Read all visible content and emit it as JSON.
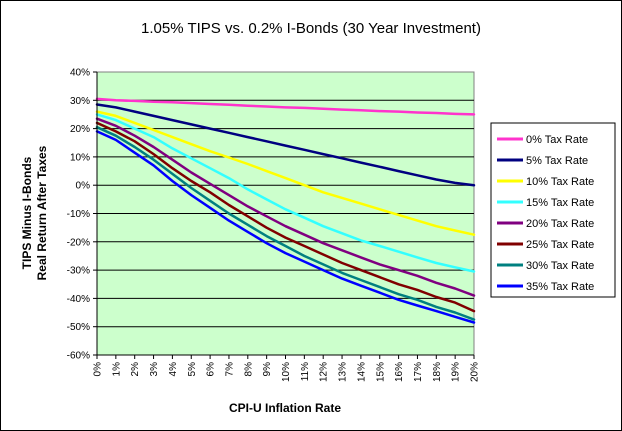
{
  "chart_data": {
    "type": "line",
    "title": "1.05% TIPS vs. 0.2% I-Bonds (30 Year Investment)",
    "xlabel": "CPI-U Inflation Rate",
    "ylabel_line1": "TIPS Minus I-Bonds",
    "ylabel_line2": "Real Return After Taxes",
    "x": [
      0,
      1,
      2,
      3,
      4,
      5,
      6,
      7,
      8,
      9,
      10,
      11,
      12,
      13,
      14,
      15,
      16,
      17,
      18,
      19,
      20
    ],
    "x_tick_labels": [
      "0%",
      "1%",
      "2%",
      "3%",
      "4%",
      "5%",
      "6%",
      "7%",
      "8%",
      "9%",
      "10%",
      "11%",
      "12%",
      "13%",
      "14%",
      "15%",
      "16%",
      "17%",
      "18%",
      "19%",
      "20%"
    ],
    "ylim": [
      -60,
      40
    ],
    "y_ticks": [
      -60,
      -50,
      -40,
      -30,
      -20,
      -10,
      0,
      10,
      20,
      30,
      40
    ],
    "y_tick_labels": [
      "-60%",
      "-50%",
      "-40%",
      "-30%",
      "-20%",
      "-10%",
      "0%",
      "10%",
      "20%",
      "30%",
      "40%"
    ],
    "grid": "horizontal",
    "plot_background": "#ccffcc",
    "legend_position": "right",
    "series": [
      {
        "name": "0% Tax Rate",
        "color": "#ff33cc",
        "values": [
          30.5,
          30,
          29.8,
          29.5,
          29.3,
          29,
          28.7,
          28.4,
          28.1,
          27.8,
          27.5,
          27.3,
          27,
          26.7,
          26.5,
          26.2,
          26,
          25.7,
          25.5,
          25.2,
          25
        ]
      },
      {
        "name": "5% Tax Rate",
        "color": "#000080",
        "values": [
          28.5,
          27.5,
          26,
          24.5,
          23,
          21.5,
          20,
          18.5,
          17,
          15.5,
          14,
          12.5,
          11,
          9.5,
          8,
          6.5,
          5,
          3.5,
          2,
          0.8,
          0
        ]
      },
      {
        "name": "10% Tax Rate",
        "color": "#ffff00",
        "values": [
          26,
          24.5,
          22,
          19.5,
          17,
          14.5,
          12,
          9.8,
          7.5,
          5,
          2.5,
          0,
          -2.5,
          -4.5,
          -6.5,
          -8.5,
          -10.5,
          -12.5,
          -14.5,
          -16,
          -17.5
        ]
      },
      {
        "name": "15% Tax Rate",
        "color": "#33ffff",
        "values": [
          25,
          23,
          20,
          17,
          13,
          9.5,
          6,
          2.5,
          -1.5,
          -5,
          -8.5,
          -11.5,
          -14.5,
          -17,
          -19.5,
          -21.5,
          -23.5,
          -25.5,
          -27.5,
          -29,
          -30.5
        ]
      },
      {
        "name": "20% Tax Rate",
        "color": "#800080",
        "values": [
          23.5,
          21,
          17.5,
          13.5,
          9,
          4.5,
          0.5,
          -3.5,
          -7.5,
          -11,
          -14.5,
          -17.5,
          -20.5,
          -23,
          -25.5,
          -28,
          -30,
          -32,
          -34.5,
          -36.5,
          -39
        ]
      },
      {
        "name": "25% Tax Rate",
        "color": "#800000",
        "values": [
          22,
          19,
          15.5,
          11,
          6,
          1.5,
          -2.5,
          -7,
          -11,
          -15,
          -18.5,
          -21.5,
          -24.5,
          -27.5,
          -30,
          -32.5,
          -35,
          -37,
          -39.5,
          -41.5,
          -44.5
        ]
      },
      {
        "name": "30% Tax Rate",
        "color": "#008080",
        "values": [
          20.5,
          17.5,
          13.5,
          9,
          4,
          -1,
          -5.5,
          -10,
          -14,
          -18,
          -21.5,
          -25,
          -28,
          -31,
          -33.5,
          -36,
          -38.5,
          -40.5,
          -43,
          -45,
          -47.5
        ]
      },
      {
        "name": "35% Tax Rate",
        "color": "#0000ff",
        "values": [
          19,
          16,
          11.5,
          7,
          1.5,
          -3.5,
          -8,
          -12.5,
          -16.5,
          -20.5,
          -24,
          -27,
          -30,
          -33,
          -35.5,
          -38,
          -40.5,
          -42.5,
          -44.5,
          -46.5,
          -48.5
        ]
      }
    ]
  }
}
